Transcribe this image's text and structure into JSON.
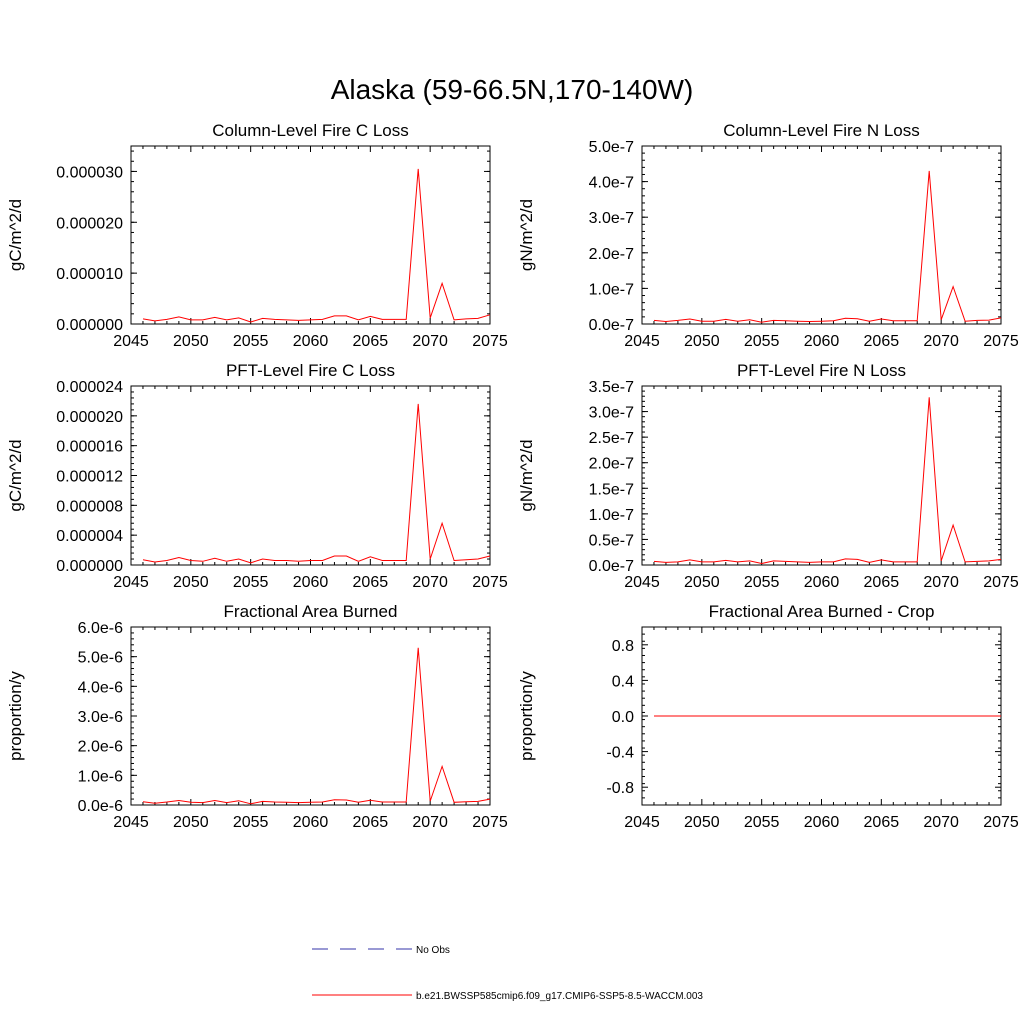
{
  "title": "Alaska (59-66.5N,170-140W)",
  "colors": {
    "model_line": "#ff0000",
    "obs_line": "#3333aa",
    "axis": "#000000"
  },
  "legend": {
    "obs_label": "No Obs",
    "model_label": "b.e21.BWSSP585cmip6.f09_g17.CMIP6-SSP5-8.5-WACCM.003"
  },
  "chart_data": [
    {
      "type": "line",
      "title": "Column-Level Fire C Loss",
      "xlabel": "",
      "ylabel": "gC/m^2/d",
      "xlim": [
        2045,
        2075
      ],
      "ylim": [
        0,
        3.5e-05
      ],
      "yticks": [
        0,
        1e-05,
        2e-05,
        3e-05
      ],
      "ytick_labels": [
        "0.000000",
        "0.000010",
        "0.000020",
        "0.000030"
      ],
      "xticks": [
        2045,
        2050,
        2055,
        2060,
        2065,
        2070,
        2075
      ],
      "xtick_labels": [
        "2045",
        "2050",
        "2055",
        "2060",
        "2065",
        "2070",
        "2075"
      ],
      "series": [
        {
          "x": [
            2046,
            2047,
            2048,
            2049,
            2050,
            2051,
            2052,
            2053,
            2054,
            2055,
            2056,
            2057,
            2058,
            2059,
            2060,
            2061,
            2062,
            2063,
            2064,
            2065,
            2066,
            2067,
            2068,
            2069,
            2070,
            2071,
            2072,
            2073,
            2074,
            2075
          ],
          "values": [
            1e-06,
            6e-07,
            9e-07,
            1.4e-06,
            8e-07,
            8e-07,
            1.3e-06,
            8e-07,
            1.2e-06,
            4e-07,
            1.1e-06,
            9e-07,
            8e-07,
            7e-07,
            8e-07,
            9e-07,
            1.6e-06,
            1.6e-06,
            8e-07,
            1.5e-06,
            9e-07,
            9e-07,
            9e-07,
            3.05e-05,
            1.2e-06,
            8e-06,
            8e-07,
            1e-06,
            1.1e-06,
            1.8e-06
          ]
        }
      ]
    },
    {
      "type": "line",
      "title": "Column-Level Fire N Loss",
      "xlabel": "",
      "ylabel": "gN/m^2/d",
      "xlim": [
        2045,
        2075
      ],
      "ylim": [
        0,
        5e-07
      ],
      "yticks": [
        0,
        1e-07,
        2e-07,
        3e-07,
        4e-07,
        5e-07
      ],
      "ytick_labels": [
        "0.0e-7",
        "1.0e-7",
        "2.0e-7",
        "3.0e-7",
        "4.0e-7",
        "5.0e-7"
      ],
      "xticks": [
        2045,
        2050,
        2055,
        2060,
        2065,
        2070,
        2075
      ],
      "xtick_labels": [
        "2045",
        "2050",
        "2055",
        "2060",
        "2065",
        "2070",
        "2075"
      ],
      "series": [
        {
          "x": [
            2046,
            2047,
            2048,
            2049,
            2050,
            2051,
            2052,
            2053,
            2054,
            2055,
            2056,
            2057,
            2058,
            2059,
            2060,
            2061,
            2062,
            2063,
            2064,
            2065,
            2066,
            2067,
            2068,
            2069,
            2070,
            2071,
            2072,
            2073,
            2074,
            2075
          ],
          "values": [
            1e-08,
            7e-09,
            1e-08,
            1.4e-08,
            8e-09,
            8e-09,
            1.3e-08,
            8e-09,
            1.2e-08,
            5e-09,
            1e-08,
            9e-09,
            8e-09,
            7e-09,
            8e-09,
            9e-09,
            1.6e-08,
            1.5e-08,
            8e-09,
            1.4e-08,
            9e-09,
            9e-09,
            9e-09,
            4.3e-07,
            1.2e-08,
            1.05e-07,
            8e-09,
            1e-08,
            1.1e-08,
            1.7e-08
          ]
        }
      ]
    },
    {
      "type": "line",
      "title": "PFT-Level Fire C Loss",
      "xlabel": "",
      "ylabel": "gC/m^2/d",
      "xlim": [
        2045,
        2075
      ],
      "ylim": [
        0,
        2.4e-05
      ],
      "yticks": [
        0,
        4e-06,
        8e-06,
        1.2e-05,
        1.6e-05,
        2e-05,
        2.4e-05
      ],
      "ytick_labels": [
        "0.000000",
        "0.000004",
        "0.000008",
        "0.000012",
        "0.000016",
        "0.000020",
        "0.000024"
      ],
      "xticks": [
        2045,
        2050,
        2055,
        2060,
        2065,
        2070,
        2075
      ],
      "xtick_labels": [
        "2045",
        "2050",
        "2055",
        "2060",
        "2065",
        "2070",
        "2075"
      ],
      "series": [
        {
          "x": [
            2046,
            2047,
            2048,
            2049,
            2050,
            2051,
            2052,
            2053,
            2054,
            2055,
            2056,
            2057,
            2058,
            2059,
            2060,
            2061,
            2062,
            2063,
            2064,
            2065,
            2066,
            2067,
            2068,
            2069,
            2070,
            2071,
            2072,
            2073,
            2074,
            2075
          ],
          "values": [
            7e-07,
            4e-07,
            6e-07,
            1e-06,
            6e-07,
            5e-07,
            9e-07,
            5e-07,
            8e-07,
            3e-07,
            8e-07,
            6e-07,
            6e-07,
            5e-07,
            6e-07,
            6e-07,
            1.2e-06,
            1.2e-06,
            5e-07,
            1.1e-06,
            6e-07,
            6e-07,
            6e-07,
            2.16e-05,
            8e-07,
            5.6e-06,
            6e-07,
            7e-07,
            8e-07,
            1.2e-06
          ]
        }
      ]
    },
    {
      "type": "line",
      "title": "PFT-Level Fire N Loss",
      "xlabel": "",
      "ylabel": "gN/m^2/d",
      "xlim": [
        2045,
        2075
      ],
      "ylim": [
        0,
        3.5e-07
      ],
      "yticks": [
        0,
        5e-08,
        1e-07,
        1.5e-07,
        2e-07,
        2.5e-07,
        3e-07,
        3.5e-07
      ],
      "ytick_labels": [
        "0.0e-7",
        "0.5e-7",
        "1.0e-7",
        "1.5e-7",
        "2.0e-7",
        "2.5e-7",
        "3.0e-7",
        "3.5e-7"
      ],
      "xticks": [
        2045,
        2050,
        2055,
        2060,
        2065,
        2070,
        2075
      ],
      "xtick_labels": [
        "2045",
        "2050",
        "2055",
        "2060",
        "2065",
        "2070",
        "2075"
      ],
      "series": [
        {
          "x": [
            2046,
            2047,
            2048,
            2049,
            2050,
            2051,
            2052,
            2053,
            2054,
            2055,
            2056,
            2057,
            2058,
            2059,
            2060,
            2061,
            2062,
            2063,
            2064,
            2065,
            2066,
            2067,
            2068,
            2069,
            2070,
            2071,
            2072,
            2073,
            2074,
            2075
          ],
          "values": [
            7e-09,
            5e-09,
            6e-09,
            1e-08,
            6e-09,
            6e-09,
            9e-09,
            6e-09,
            8e-09,
            3e-09,
            8e-09,
            7e-09,
            6e-09,
            5e-09,
            6e-09,
            6e-09,
            1.2e-08,
            1.1e-08,
            5e-09,
            1e-08,
            6e-09,
            6e-09,
            6e-09,
            3.28e-07,
            8e-09,
            7.8e-08,
            6e-09,
            7e-09,
            8e-09,
            1.1e-08
          ]
        }
      ]
    },
    {
      "type": "line",
      "title": "Fractional Area Burned",
      "xlabel": "",
      "ylabel": "proportion/y",
      "xlim": [
        2045,
        2075
      ],
      "ylim": [
        0,
        6e-06
      ],
      "yticks": [
        0,
        1e-06,
        2e-06,
        3e-06,
        4e-06,
        5e-06,
        6e-06
      ],
      "ytick_labels": [
        "0.0e-6",
        "1.0e-6",
        "2.0e-6",
        "3.0e-6",
        "4.0e-6",
        "5.0e-6",
        "6.0e-6"
      ],
      "xticks": [
        2045,
        2050,
        2055,
        2060,
        2065,
        2070,
        2075
      ],
      "xtick_labels": [
        "2045",
        "2050",
        "2055",
        "2060",
        "2065",
        "2070",
        "2075"
      ],
      "series": [
        {
          "x": [
            2046,
            2047,
            2048,
            2049,
            2050,
            2051,
            2052,
            2053,
            2054,
            2055,
            2056,
            2057,
            2058,
            2059,
            2060,
            2061,
            2062,
            2063,
            2064,
            2065,
            2066,
            2067,
            2068,
            2069,
            2070,
            2071,
            2072,
            2073,
            2074,
            2075
          ],
          "values": [
            1.1e-07,
            6e-08,
            1e-07,
            1.5e-07,
            9e-08,
            8e-08,
            1.5e-07,
            8e-08,
            1.4e-07,
            4e-08,
            1.2e-07,
            1e-07,
            9e-08,
            8e-08,
            9e-08,
            1e-07,
            1.8e-07,
            1.7e-07,
            9e-08,
            1.6e-07,
            1e-07,
            1e-07,
            1e-07,
            5.3e-06,
            1.3e-07,
            1.3e-06,
            9e-08,
            1.1e-07,
            1.2e-07,
            2e-07
          ]
        }
      ]
    },
    {
      "type": "line",
      "title": "Fractional Area Burned - Crop",
      "xlabel": "",
      "ylabel": "proportion/y",
      "xlim": [
        2045,
        2075
      ],
      "ylim": [
        -1.0,
        1.0
      ],
      "yticks": [
        -0.8,
        -0.4,
        0.0,
        0.4,
        0.8
      ],
      "ytick_labels": [
        "-0.8",
        "-0.4",
        "0.0",
        "0.4",
        "0.8"
      ],
      "xticks": [
        2045,
        2050,
        2055,
        2060,
        2065,
        2070,
        2075
      ],
      "xtick_labels": [
        "2045",
        "2050",
        "2055",
        "2060",
        "2065",
        "2070",
        "2075"
      ],
      "series": [
        {
          "x": [
            2046,
            2047,
            2048,
            2049,
            2050,
            2051,
            2052,
            2053,
            2054,
            2055,
            2056,
            2057,
            2058,
            2059,
            2060,
            2061,
            2062,
            2063,
            2064,
            2065,
            2066,
            2067,
            2068,
            2069,
            2070,
            2071,
            2072,
            2073,
            2074,
            2075
          ],
          "values": [
            0,
            0,
            0,
            0,
            0,
            0,
            0,
            0,
            0,
            0,
            0,
            0,
            0,
            0,
            0,
            0,
            0,
            0,
            0,
            0,
            0,
            0,
            0,
            0,
            0,
            0,
            0,
            0,
            0,
            0
          ]
        }
      ]
    }
  ]
}
